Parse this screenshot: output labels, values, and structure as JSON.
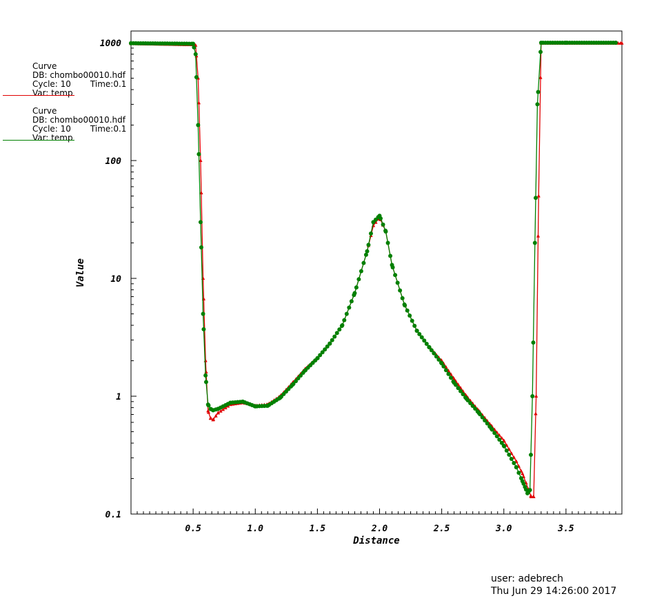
{
  "chart_data": {
    "type": "line",
    "title": "",
    "xlabel": "Distance",
    "ylabel": "Value",
    "xlim": [
      0.0,
      3.95
    ],
    "ylim": [
      0.1,
      1000
    ],
    "yscale": "log",
    "xticks": [
      "0.5",
      "1.0",
      "1.5",
      "2.0",
      "2.5",
      "3.0",
      "3.5"
    ],
    "yticks": [
      "0.1",
      "1",
      "10",
      "100",
      "1000"
    ],
    "grid": false,
    "legend_position": "top-left",
    "series": [
      {
        "name": "Curve",
        "color": "#e00000",
        "marker": "triangle",
        "x": [
          0.0,
          0.5,
          0.52,
          0.54,
          0.56,
          0.58,
          0.6,
          0.62,
          0.64,
          0.66,
          0.7,
          0.8,
          0.9,
          1.0,
          1.1,
          1.2,
          1.3,
          1.4,
          1.5,
          1.6,
          1.7,
          1.8,
          1.9,
          1.95,
          2.0,
          2.05,
          2.1,
          2.2,
          2.3,
          2.4,
          2.5,
          2.6,
          2.7,
          2.8,
          2.9,
          3.0,
          3.1,
          3.15,
          3.2,
          3.22,
          3.24,
          3.26,
          3.28,
          3.3,
          3.5,
          3.95
        ],
        "y": [
          980,
          960,
          950,
          500,
          100,
          10,
          2,
          0.75,
          0.65,
          0.63,
          0.72,
          0.85,
          0.88,
          0.83,
          0.85,
          1.0,
          1.3,
          1.7,
          2.1,
          2.8,
          4.0,
          7.5,
          17,
          28,
          33,
          25,
          13,
          6,
          3.6,
          2.6,
          2.0,
          1.4,
          1.0,
          0.75,
          0.56,
          0.42,
          0.28,
          0.22,
          0.16,
          0.14,
          0.14,
          1.0,
          50,
          990,
          990,
          990
        ]
      },
      {
        "name": "Curve",
        "color": "#008000",
        "marker": "circle",
        "x": [
          0.0,
          0.5,
          0.52,
          0.54,
          0.56,
          0.58,
          0.6,
          0.62,
          0.64,
          0.66,
          0.7,
          0.8,
          0.9,
          1.0,
          1.1,
          1.2,
          1.3,
          1.4,
          1.5,
          1.6,
          1.7,
          1.8,
          1.9,
          1.95,
          2.0,
          2.05,
          2.1,
          2.2,
          2.3,
          2.4,
          2.5,
          2.6,
          2.7,
          2.8,
          2.9,
          3.0,
          3.1,
          3.15,
          3.17,
          3.19,
          3.21,
          3.23,
          3.25,
          3.27,
          3.3,
          3.5,
          3.9
        ],
        "y": [
          990,
          980,
          800,
          200,
          30,
          5,
          1.5,
          0.85,
          0.78,
          0.76,
          0.78,
          0.88,
          0.9,
          0.82,
          0.83,
          0.97,
          1.25,
          1.65,
          2.1,
          2.8,
          4.0,
          7.5,
          17,
          30,
          34,
          25,
          13,
          6,
          3.6,
          2.6,
          1.9,
          1.3,
          0.95,
          0.72,
          0.53,
          0.38,
          0.25,
          0.19,
          0.17,
          0.15,
          0.16,
          1.0,
          20,
          300,
          1000,
          1000,
          1000
        ]
      }
    ]
  },
  "legend": [
    {
      "title": "Curve",
      "db": "DB: chombo00010.hdf",
      "cycle": "Cycle: 10",
      "time": "Time:0.1",
      "var": "Var: temp",
      "color": "#e00000"
    },
    {
      "title": "Curve",
      "db": "DB: chombo00010.hdf",
      "cycle": "Cycle: 10",
      "time": "Time:0.1",
      "var": "Var: temp",
      "color": "#008000"
    }
  ],
  "footer": {
    "user": "user: adebrech",
    "date": "Thu Jun 29 14:26:00 2017"
  }
}
